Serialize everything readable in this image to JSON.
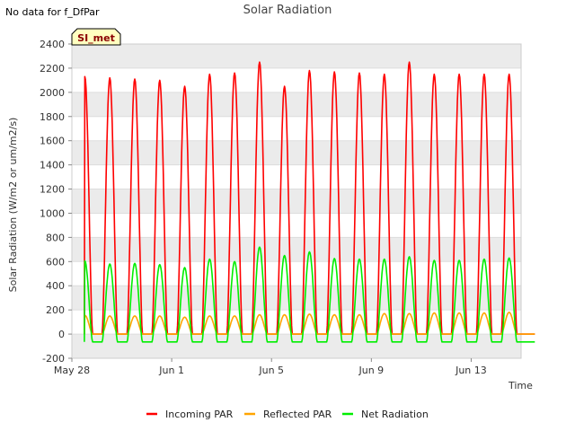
{
  "header": {
    "no_data_note": "No data for f_DfPar",
    "title": "Solar Radiation"
  },
  "site_badge": "SI_met",
  "colors": {
    "incoming_par": "#ff0000",
    "reflected_par": "#ffa500",
    "net_radiation": "#00ee00",
    "band": "#ebebeb",
    "badge_bg": "#ffffc0",
    "badge_text": "#8b0000"
  },
  "chart_data": {
    "type": "line",
    "title": "Solar Radiation",
    "xlabel": "Time",
    "ylabel": "Solar Radiation (W/m2 or um/m2/s)",
    "ylim": [
      -200,
      2400
    ],
    "yticks": [
      -200,
      0,
      200,
      400,
      600,
      800,
      1000,
      1200,
      1400,
      1600,
      1800,
      2000,
      2200,
      2400
    ],
    "xlim": [
      "2024-05-28",
      "2024-06-15"
    ],
    "xticks": [
      {
        "date": "2024-05-28",
        "label": "May 28"
      },
      {
        "date": "2024-06-01",
        "label": "Jun 1"
      },
      {
        "date": "2024-06-05",
        "label": "Jun 5"
      },
      {
        "date": "2024-06-09",
        "label": "Jun 9"
      },
      {
        "date": "2024-06-13",
        "label": "Jun 13"
      }
    ],
    "grid": true,
    "legend_position": "bottom",
    "days": [
      "2024-05-28",
      "2024-05-29",
      "2024-05-30",
      "2024-05-31",
      "2024-06-01",
      "2024-06-02",
      "2024-06-03",
      "2024-06-04",
      "2024-06-05",
      "2024-06-06",
      "2024-06-07",
      "2024-06-08",
      "2024-06-09",
      "2024-06-10",
      "2024-06-11",
      "2024-06-12",
      "2024-06-13",
      "2024-06-14"
    ],
    "series": [
      {
        "name": "Incoming PAR",
        "key": "incoming_par",
        "daily_peak": [
          2130,
          2120,
          2110,
          2100,
          2050,
          2150,
          2160,
          2250,
          2050,
          2180,
          2170,
          2160,
          2150,
          2250,
          2150,
          2150,
          2150,
          2150
        ],
        "night_value": 0
      },
      {
        "name": "Reflected PAR",
        "key": "reflected_par",
        "daily_peak": [
          155,
          150,
          150,
          150,
          140,
          150,
          150,
          160,
          160,
          165,
          160,
          160,
          170,
          170,
          175,
          175,
          175,
          180
        ],
        "night_value": 0
      },
      {
        "name": "Net Radiation",
        "key": "net_radiation",
        "daily_peak": [
          605,
          580,
          585,
          575,
          550,
          620,
          600,
          720,
          650,
          680,
          625,
          620,
          620,
          640,
          610,
          610,
          620,
          630
        ],
        "night_value": -65
      }
    ]
  }
}
